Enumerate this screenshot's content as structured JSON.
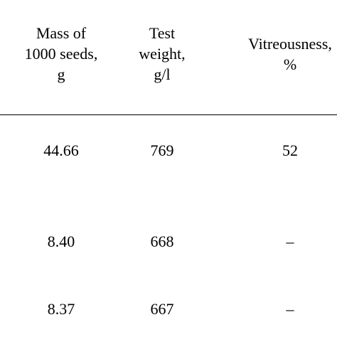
{
  "table": {
    "headers": [
      [
        "Mass of",
        "1000 seeds,",
        "g"
      ],
      [
        "Test",
        "weight,",
        "g/l"
      ],
      [
        "Vitreousness,",
        "%"
      ]
    ],
    "rows": [
      [
        "44.66",
        "769",
        "52"
      ],
      [
        "8.40",
        "668",
        "–"
      ],
      [
        "8.37",
        "667",
        "–"
      ]
    ]
  }
}
